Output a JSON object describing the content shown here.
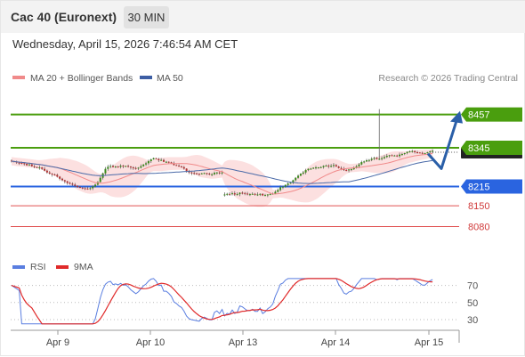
{
  "header": {
    "title": "Cac 40 (Euronext)",
    "timeframe": "30 MIN",
    "datetime": "Wednesday, April 15, 2026 7:46:54 AM CET"
  },
  "credit": "Research © 2026 Trading Central",
  "colors": {
    "resistance": "#4a9e0e",
    "support_pivot": "#2a64e0",
    "support": "#e05050",
    "bollinger_fill": "#fbdada",
    "ma20": "#f08a8a",
    "ma50": "#4a6aa8",
    "arrow": "#2a5fa8",
    "candle_up": "#3a8a1a",
    "candle_down": "#b23030",
    "rsi": "#5a7ee0",
    "rsi_ma": "#e02a2a"
  },
  "chart_data": [
    {
      "type": "candlestick",
      "title": "",
      "legend": [
        {
          "name": "MA 20 + Bollinger Bands",
          "color": "#f08a8a"
        },
        {
          "name": "MA 50",
          "color": "#3d5ea4"
        }
      ],
      "legend_position": "top-left",
      "x_tick_labels": [
        "Apr 9",
        "Apr 10",
        "Apr 13",
        "Apr 14",
        "Apr 15"
      ],
      "ylim": [
        8020,
        8500
      ],
      "levels": [
        {
          "value": 8457,
          "label": "8457",
          "kind": "resistance"
        },
        {
          "value": 8345,
          "label": "8345",
          "kind": "resistance"
        },
        {
          "value": 8215,
          "label": "8215",
          "kind": "pivot"
        },
        {
          "value": 8150,
          "label": "8150",
          "kind": "support"
        },
        {
          "value": 8080,
          "label": "8080",
          "kind": "support"
        }
      ],
      "last_price": 8330,
      "projection": [
        8325,
        8275,
        8445
      ],
      "close": [
        8300,
        8298,
        8295,
        8294,
        8293,
        8291,
        8286,
        8289,
        8283,
        8280,
        8278,
        8279,
        8274,
        8268,
        8262,
        8258,
        8255,
        8254,
        8248,
        8241,
        8236,
        8232,
        8227,
        8224,
        8221,
        8217,
        8213,
        8211,
        8209,
        8208,
        8207,
        8209,
        8215,
        8221,
        8230,
        8244,
        8259,
        8274,
        8281,
        8284,
        8280,
        8282,
        8281,
        8285,
        8283,
        8284,
        8282,
        8279,
        8277,
        8275,
        8278,
        8283,
        8289,
        8293,
        8300,
        8306,
        8310,
        8307,
        8303,
        8304,
        8298,
        8298,
        8296,
        8293,
        8287,
        8285,
        8282,
        8280,
        8275,
        8267,
        8262,
        8260,
        8259,
        8258,
        8257,
        8259,
        8260,
        8258,
        8256,
        8256,
        8261,
        8262,
        8259,
        8262,
        8188,
        8190,
        8189,
        8192,
        8188,
        8189,
        8194,
        8193,
        8191,
        8189,
        8189,
        8190,
        8188,
        8188,
        8190,
        8185,
        8186,
        8188,
        8189,
        8191,
        8197,
        8203,
        8212,
        8214,
        8220,
        8225,
        8227,
        8236,
        8244,
        8251,
        8258,
        8262,
        8270,
        8274,
        8275,
        8278,
        8279,
        8279,
        8280,
        8284,
        8285,
        8282,
        8284,
        8287,
        8282,
        8277,
        8274,
        8270,
        8269,
        8272,
        8273,
        8277,
        8283,
        8289,
        8297,
        8299,
        8303,
        8304,
        8308,
        8311,
        8307,
        8308,
        8310,
        8314,
        8318,
        8320,
        8319,
        8319,
        8317,
        8322,
        8324,
        8327,
        8331,
        8333,
        8334,
        8330,
        8329,
        8328,
        8327,
        8327,
        8330,
        8333,
        8335
      ]
    },
    {
      "type": "line",
      "title": "",
      "legend": [
        {
          "name": "RSI",
          "color": "#5a7ee0"
        },
        {
          "name": "9MA",
          "color": "#e02a2a"
        }
      ],
      "legend_position": "top-left",
      "ylim": [
        20,
        80
      ],
      "y_ticks": [
        70,
        50,
        30
      ]
    }
  ]
}
